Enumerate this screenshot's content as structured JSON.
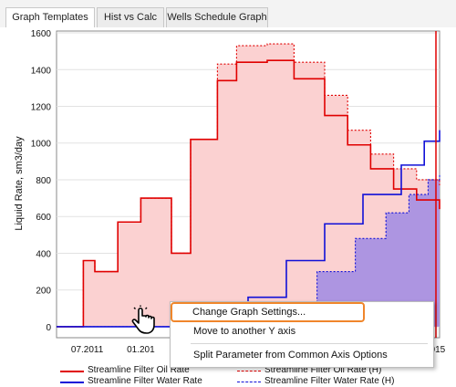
{
  "tabs": [
    {
      "label": "Graph Templates",
      "active": true
    },
    {
      "label": "Hist vs Calc",
      "active": false
    },
    {
      "label": "Wells Schedule Graph",
      "active": false
    }
  ],
  "chart_data": {
    "type": "area",
    "ylabel": "Liquid Rate, sm3/day",
    "ylim": [
      -60,
      1610
    ],
    "y_ticks": [
      0,
      200,
      400,
      600,
      800,
      1000,
      1200,
      1400,
      1600
    ],
    "x_tick_labels": [
      "07.2011",
      "01.201",
      "015"
    ],
    "grid": true,
    "series": [
      {
        "name": "Streamline Filter Oil Rate",
        "color": "#e00000",
        "style": "solid",
        "x": [
          0,
          0.07,
          0.1,
          0.16,
          0.22,
          0.3,
          0.35,
          0.42,
          0.47,
          0.55,
          0.62,
          0.7,
          0.76,
          0.82,
          0.88,
          0.94,
          1.0
        ],
        "values": [
          0,
          360,
          300,
          570,
          700,
          400,
          1020,
          1340,
          1440,
          1450,
          1350,
          1150,
          990,
          860,
          750,
          690,
          640
        ]
      },
      {
        "name": "Streamline Filter Oil Rate (H)",
        "color": "#e00000",
        "style": "dashed",
        "x": [
          0,
          0.07,
          0.1,
          0.16,
          0.22,
          0.3,
          0.35,
          0.42,
          0.47,
          0.55,
          0.62,
          0.7,
          0.76,
          0.82,
          0.88,
          0.94,
          1.0
        ],
        "values": [
          0,
          360,
          300,
          570,
          700,
          400,
          1020,
          1430,
          1530,
          1540,
          1440,
          1260,
          1070,
          940,
          860,
          800,
          770
        ]
      },
      {
        "name": "Streamline Filter Water Rate",
        "color": "#1010d8",
        "style": "solid",
        "x": [
          0,
          0.4,
          0.5,
          0.6,
          0.7,
          0.8,
          0.9,
          0.96,
          1.0
        ],
        "values": [
          0,
          0,
          160,
          360,
          560,
          720,
          880,
          1010,
          1070
        ]
      },
      {
        "name": "Streamline Filter Water Rate (H)",
        "color": "#1010d8",
        "style": "dashed",
        "x": [
          0,
          0.48,
          0.58,
          0.68,
          0.78,
          0.86,
          0.92,
          0.97,
          1.0
        ],
        "values": [
          0,
          0,
          120,
          300,
          480,
          620,
          720,
          800,
          830
        ]
      }
    ]
  },
  "context_menu": {
    "items": [
      {
        "label": "Change Graph Settings...",
        "highlighted": true
      },
      {
        "label": "Move to another Y axis",
        "highlighted": false
      },
      {
        "label": "Split Parameter from Common Axis Options",
        "highlighted": false
      }
    ]
  },
  "legend": [
    {
      "label": "Streamline Filter Oil Rate",
      "color": "#e00000",
      "style": "solid"
    },
    {
      "label": "Streamline Filter Oil Rate (H)",
      "color": "#e00000",
      "style": "dashed"
    },
    {
      "label": "Streamline Filter Water Rate",
      "color": "#1010d8",
      "style": "solid"
    },
    {
      "label": "Streamline Filter Water Rate (H)",
      "color": "#1010d8",
      "style": "dashed"
    }
  ],
  "colors": {
    "oil_fill": "#fbd1d1",
    "water_fill": "#a48ee2",
    "accent": "#f0862b"
  },
  "icons": {
    "cursor": "hand-pointer-icon"
  }
}
